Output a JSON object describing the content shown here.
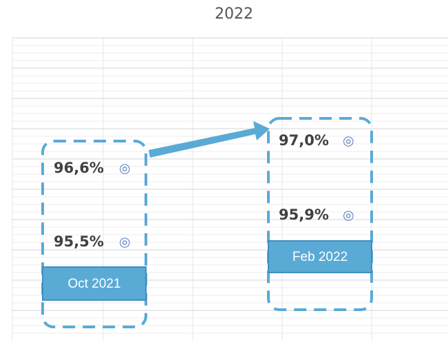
{
  "title": "2022",
  "groups": [
    {
      "label": "Oct 2021",
      "values": [
        "96,6%",
        "95,5%"
      ]
    },
    {
      "label": "Feb 2022",
      "values": [
        "97,0%",
        "95,9%"
      ]
    }
  ]
}
